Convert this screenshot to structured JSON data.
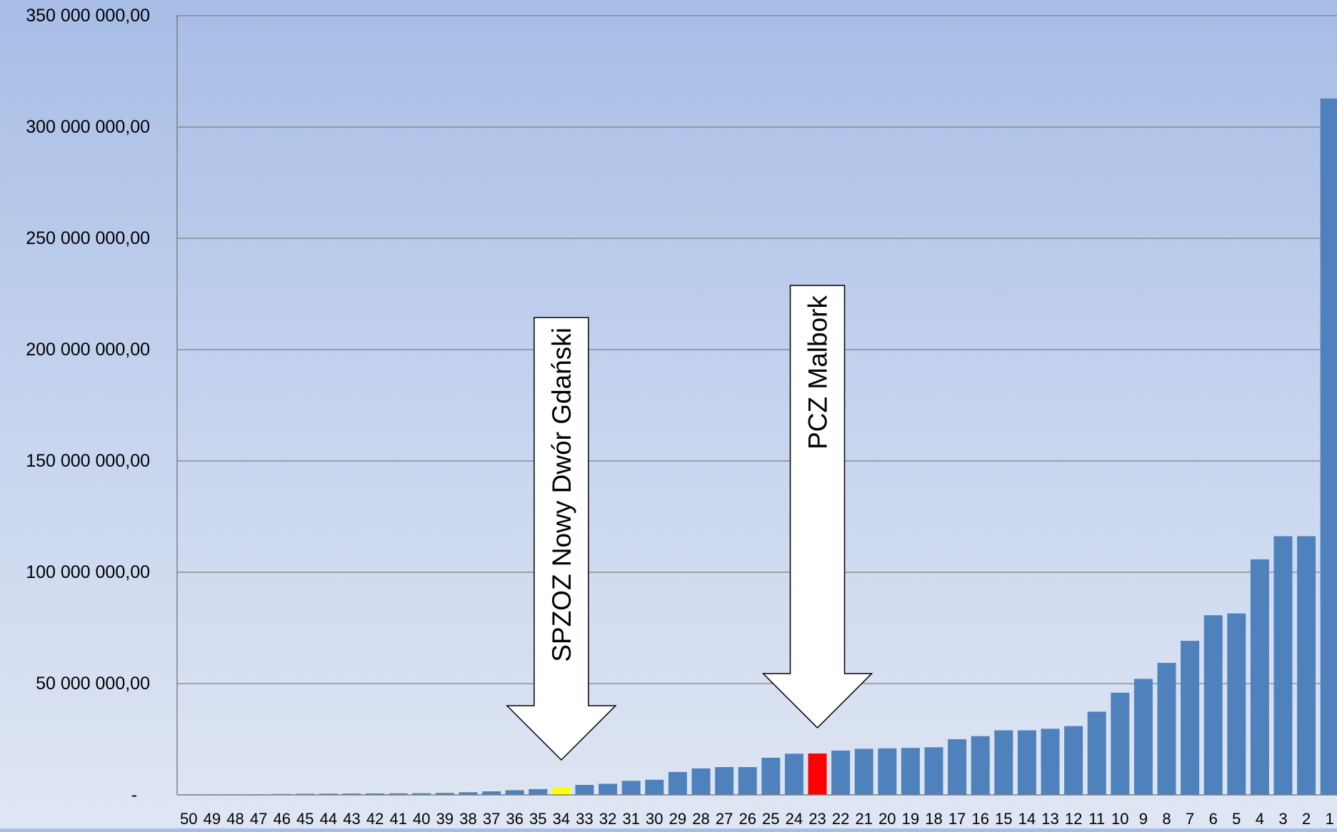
{
  "chart_data": {
    "type": "bar",
    "title": "",
    "xlabel": "",
    "ylabel": "",
    "ylim": [
      0,
      350000000
    ],
    "y_ticks": [
      {
        "value": 0,
        "label": "-"
      },
      {
        "value": 50000000,
        "label": "50 000 000,00"
      },
      {
        "value": 100000000,
        "label": "100 000 000,00"
      },
      {
        "value": 150000000,
        "label": "150 000 000,00"
      },
      {
        "value": 200000000,
        "label": "200 000 000,00"
      },
      {
        "value": 250000000,
        "label": "250 000 000,00"
      },
      {
        "value": 300000000,
        "label": "300 000 000,00"
      },
      {
        "value": 350000000,
        "label": "350 000 000,00"
      }
    ],
    "grid": true,
    "legend": "none",
    "default_color": "#4f81bd",
    "categories": [
      "50",
      "49",
      "48",
      "47",
      "46",
      "45",
      "44",
      "43",
      "42",
      "41",
      "40",
      "39",
      "38",
      "37",
      "36",
      "35",
      "34",
      "33",
      "32",
      "31",
      "30",
      "29",
      "28",
      "27",
      "26",
      "25",
      "24",
      "23",
      "22",
      "21",
      "20",
      "19",
      "18",
      "17",
      "16",
      "15",
      "14",
      "13",
      "12",
      "11",
      "10",
      "9",
      "8",
      "7",
      "6",
      "5",
      "4",
      "3",
      "2",
      "1"
    ],
    "values": [
      100000,
      150000,
      200000,
      300000,
      400000,
      500000,
      550000,
      600000,
      650000,
      700000,
      750000,
      900000,
      1200000,
      1600000,
      2100000,
      2600000,
      3300000,
      4500000,
      5000000,
      6300000,
      6800000,
      10300000,
      11900000,
      12500000,
      12500000,
      16700000,
      18500000,
      18600000,
      19900000,
      20700000,
      20900000,
      21100000,
      21400000,
      25000000,
      26400000,
      29000000,
      29000000,
      29700000,
      30900000,
      37400000,
      45900000,
      52100000,
      59300000,
      69200000,
      80700000,
      81500000,
      105800000,
      116200000,
      116200000,
      312800000
    ],
    "highlights": [
      {
        "category": "34",
        "color": "#ffff00"
      },
      {
        "category": "23",
        "color": "#ff0000"
      }
    ],
    "annotations": [
      {
        "text": "SPZOZ  Nowy Dwór Gdański",
        "category": "34",
        "shape": "down-arrow"
      },
      {
        "text": "PCZ  Malbork",
        "category": "23",
        "shape": "down-arrow"
      }
    ]
  }
}
